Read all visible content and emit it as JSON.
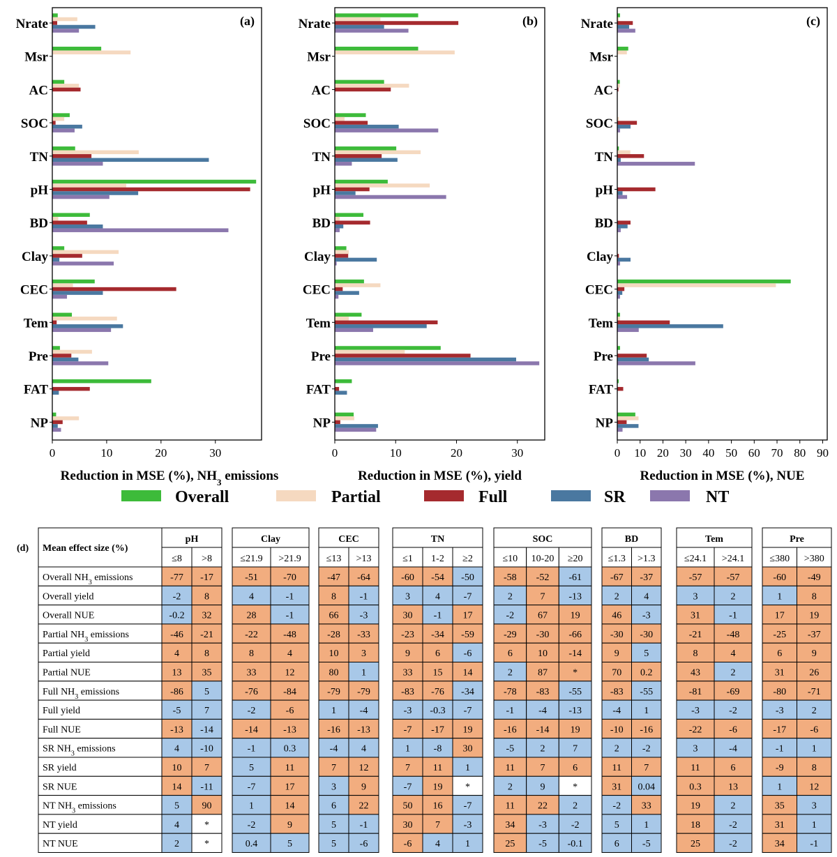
{
  "colors": {
    "Overall": "#3dbb3a",
    "Partial": "#f5d9c0",
    "Full": "#a52a2e",
    "SR": "#4a78a0",
    "NT": "#8b77ad",
    "positive_cell": "#f2ad7f",
    "negative_cell": "#a8c8e8",
    "empty_cell": "#ffffff"
  },
  "legend": [
    "Overall",
    "Partial",
    "Full",
    "SR",
    "NT"
  ],
  "chart_data": [
    {
      "type": "bar",
      "orientation": "horizontal",
      "panel": "(a)",
      "xlabel_main": "Reduction in MSE (%), NH",
      "xlabel_sub": "3",
      "xlabel_tail": " emissions",
      "categories": [
        "Nrate",
        "Msr",
        "AC",
        "SOC",
        "TN",
        "pH",
        "BD",
        "Clay",
        "CEC",
        "Tem",
        "Pre",
        "FAT",
        "NP"
      ],
      "xlim": [
        0,
        38.5
      ],
      "xticks": [
        0,
        10,
        20,
        30
      ],
      "series": [
        {
          "name": "Overall",
          "values": [
            1,
            9,
            2.2,
            3.2,
            4.2,
            37.5,
            6.9,
            2.2,
            7.8,
            3.6,
            1.4,
            18.2,
            0.7
          ]
        },
        {
          "name": "Partial",
          "values": [
            4.6,
            14.4,
            4.9,
            2.2,
            15.9,
            13.6,
            1.1,
            12.2,
            3.8,
            11.9,
            7.3,
            0,
            4.9
          ]
        },
        {
          "name": "Full",
          "values": [
            0.9,
            0,
            5.2,
            0.6,
            7.2,
            36.4,
            6.4,
            5.5,
            22.8,
            0.8,
            3.5,
            6.9,
            1.9
          ]
        },
        {
          "name": "SR",
          "values": [
            7.9,
            0,
            0,
            5.5,
            28.8,
            15.8,
            9.3,
            1.3,
            9.3,
            13,
            4.8,
            1.2,
            1
          ]
        },
        {
          "name": "NT",
          "values": [
            4.9,
            0,
            0,
            4.1,
            9.3,
            10.5,
            32.4,
            11.3,
            2.7,
            10.8,
            10.3,
            0,
            1.6
          ]
        }
      ]
    },
    {
      "type": "bar",
      "orientation": "horizontal",
      "panel": "(b)",
      "xlabel_main": "Reduction in MSE (%), yield",
      "xlabel_sub": "",
      "xlabel_tail": "",
      "categories": [
        "Nrate",
        "Msr",
        "AC",
        "SOC",
        "TN",
        "pH",
        "BD",
        "Clay",
        "CEC",
        "Tem",
        "Pre",
        "FAT",
        "NP"
      ],
      "xlim": [
        0,
        34.5
      ],
      "xticks": [
        0,
        10,
        20,
        30
      ],
      "series": [
        {
          "name": "Overall",
          "values": [
            13.7,
            13.7,
            8.1,
            5.1,
            10.1,
            8.7,
            4.7,
            1.9,
            4.8,
            4.4,
            17.4,
            2.8,
            3.1
          ]
        },
        {
          "name": "Partial",
          "values": [
            7.5,
            19.7,
            12.2,
            1.6,
            14.1,
            15.6,
            0.8,
            2.3,
            7.5,
            2.3,
            11.5,
            0,
            3.2
          ]
        },
        {
          "name": "Full",
          "values": [
            20.3,
            0,
            9.2,
            5.4,
            7.7,
            5.7,
            5.8,
            2.2,
            1.3,
            16.9,
            22.3,
            0.7,
            0.9
          ]
        },
        {
          "name": "SR",
          "values": [
            8.1,
            0,
            0,
            10.5,
            10.3,
            3.4,
            1.4,
            6.9,
            4,
            15.1,
            29.8,
            2,
            7.1
          ]
        },
        {
          "name": "NT",
          "values": [
            12.1,
            0,
            0,
            17,
            2.8,
            18.3,
            0.8,
            0.3,
            0.6,
            6.3,
            33.6,
            0,
            6.8
          ]
        }
      ]
    },
    {
      "type": "bar",
      "orientation": "horizontal",
      "panel": "(c)",
      "xlabel_main": "Reduction in MSE (%), NUE",
      "xlabel_sub": "",
      "xlabel_tail": "",
      "categories": [
        "Nrate",
        "Msr",
        "AC",
        "SOC",
        "TN",
        "pH",
        "BD",
        "Clay",
        "CEC",
        "Tem",
        "Pre",
        "FAT",
        "NP"
      ],
      "xlim": [
        0,
        92
      ],
      "xticks": [
        0,
        10,
        20,
        30,
        40,
        50,
        60,
        70,
        80,
        90
      ],
      "series": [
        {
          "name": "Overall",
          "values": [
            1.2,
            4.8,
            1.1,
            0,
            0.7,
            0,
            0,
            0,
            76,
            1.2,
            1.2,
            0.6,
            7.9
          ]
        },
        {
          "name": "Partial",
          "values": [
            0.6,
            4.2,
            1.1,
            0.7,
            5.7,
            0,
            0,
            0,
            69.5,
            1.2,
            0,
            0,
            9.3
          ]
        },
        {
          "name": "Full",
          "values": [
            6.8,
            0,
            0.5,
            8.6,
            11.7,
            16.7,
            5.8,
            0.7,
            3.1,
            23,
            12.9,
            2.6,
            4.1
          ]
        },
        {
          "name": "SR",
          "values": [
            5.2,
            0,
            0,
            5.8,
            1.5,
            2.3,
            4.5,
            5.8,
            2.2,
            46.4,
            13.8,
            0,
            9.3
          ]
        },
        {
          "name": "NT",
          "values": [
            7.9,
            0,
            0,
            1.2,
            34,
            4.3,
            1.5,
            1.2,
            1.2,
            9.4,
            34.2,
            0,
            2.3
          ]
        }
      ]
    }
  ],
  "table": {
    "panel": "(d)",
    "corner_label": "Mean effect size (%)",
    "groups": [
      {
        "name": "pH",
        "bins": [
          "≤8",
          ">8"
        ]
      },
      {
        "name": "Clay",
        "bins": [
          "≤21.9",
          ">21.9"
        ]
      },
      {
        "name": "CEC",
        "bins": [
          "≤13",
          ">13"
        ]
      },
      {
        "name": "TN",
        "bins": [
          "≤1",
          "1-2",
          "≥2"
        ]
      },
      {
        "name": "SOC",
        "bins": [
          "≤10",
          "10-20",
          "≥20"
        ]
      },
      {
        "name": "BD",
        "bins": [
          "≤1.3",
          ">1.3"
        ]
      },
      {
        "name": "Tem",
        "bins": [
          "≤24.1",
          ">24.1"
        ]
      },
      {
        "name": "Pre",
        "bins": [
          "≤380",
          ">380"
        ]
      }
    ],
    "rows": [
      {
        "pre": "Overall NH",
        "sub": "3",
        "post": " emissions",
        "values": [
          "-77",
          "-17",
          "-51",
          "-70",
          "-47",
          "-64",
          "-60",
          "-54",
          "-50",
          "-58",
          "-52",
          "-61",
          "-67",
          "-37",
          "-57",
          "-57",
          "-60",
          "-49"
        ],
        "sign": [
          "p",
          "p",
          "p",
          "p",
          "p",
          "p",
          "p",
          "p",
          "n",
          "p",
          "p",
          "n",
          "p",
          "p",
          "p",
          "p",
          "p",
          "p"
        ]
      },
      {
        "pre": "Overall yield",
        "sub": "",
        "post": "",
        "values": [
          "-2",
          "8",
          "4",
          "-1",
          "8",
          "-1",
          "3",
          "4",
          "-7",
          "2",
          "7",
          "-13",
          "2",
          "4",
          "3",
          "2",
          "1",
          "8"
        ],
        "sign": [
          "n",
          "p",
          "n",
          "n",
          "p",
          "n",
          "n",
          "n",
          "n",
          "n",
          "p",
          "n",
          "n",
          "n",
          "n",
          "n",
          "n",
          "p"
        ]
      },
      {
        "pre": "Overall NUE",
        "sub": "",
        "post": "",
        "values": [
          "-0.2",
          "32",
          "28",
          "-1",
          "66",
          "-3",
          "30",
          "-1",
          "17",
          "-2",
          "67",
          "19",
          "46",
          "-3",
          "31",
          "-1",
          "17",
          "19"
        ],
        "sign": [
          "n",
          "p",
          "p",
          "n",
          "p",
          "n",
          "p",
          "n",
          "p",
          "n",
          "p",
          "p",
          "p",
          "n",
          "p",
          "n",
          "p",
          "p"
        ]
      },
      {
        "pre": "Partial NH",
        "sub": "3",
        "post": " emissions",
        "values": [
          "-46",
          "-21",
          "-22",
          "-48",
          "-28",
          "-33",
          "-23",
          "-34",
          "-59",
          "-29",
          "-30",
          "-66",
          "-30",
          "-30",
          "-21",
          "-48",
          "-25",
          "-37"
        ],
        "sign": [
          "p",
          "p",
          "p",
          "p",
          "p",
          "p",
          "p",
          "p",
          "p",
          "p",
          "p",
          "p",
          "p",
          "p",
          "p",
          "p",
          "p",
          "p"
        ]
      },
      {
        "pre": "Partial  yield",
        "sub": "",
        "post": "",
        "values": [
          "4",
          "8",
          "8",
          "4",
          "10",
          "3",
          "9",
          "6",
          "-6",
          "6",
          "10",
          "-14",
          "9",
          "5",
          "8",
          "4",
          "6",
          "9"
        ],
        "sign": [
          "p",
          "p",
          "p",
          "p",
          "p",
          "p",
          "p",
          "p",
          "n",
          "p",
          "p",
          "p",
          "p",
          "n",
          "p",
          "p",
          "p",
          "p"
        ]
      },
      {
        "pre": "Partial  NUE",
        "sub": "",
        "post": "",
        "values": [
          "13",
          "35",
          "33",
          "12",
          "80",
          "1",
          "33",
          "15",
          "14",
          "2",
          "87",
          "*",
          "70",
          "0.2",
          "43",
          "2",
          "31",
          "26"
        ],
        "sign": [
          "p",
          "p",
          "p",
          "p",
          "p",
          "n",
          "p",
          "p",
          "p",
          "n",
          "p",
          "p",
          "p",
          "p",
          "p",
          "n",
          "p",
          "p"
        ]
      },
      {
        "pre": "Full NH",
        "sub": "3",
        "post": " emissions",
        "values": [
          "-86",
          "5",
          "-76",
          "-84",
          "-79",
          "-79",
          "-83",
          "-76",
          "-34",
          "-78",
          "-83",
          "-55",
          "-83",
          "-55",
          "-81",
          "-69",
          "-80",
          "-71"
        ],
        "sign": [
          "p",
          "n",
          "p",
          "p",
          "p",
          "p",
          "p",
          "p",
          "n",
          "p",
          "p",
          "n",
          "p",
          "n",
          "p",
          "p",
          "p",
          "p"
        ]
      },
      {
        "pre": "Full yield",
        "sub": "",
        "post": "",
        "values": [
          "-5",
          "7",
          "-2",
          "-6",
          "1",
          "-4",
          "-3",
          "-0.3",
          "-7",
          "-1",
          "-4",
          "-13",
          "-4",
          "1",
          "-3",
          "-2",
          "-3",
          "2"
        ],
        "sign": [
          "n",
          "n",
          "n",
          "p",
          "n",
          "n",
          "n",
          "n",
          "n",
          "n",
          "n",
          "n",
          "n",
          "n",
          "n",
          "n",
          "n",
          "n"
        ]
      },
      {
        "pre": "Full NUE",
        "sub": "",
        "post": "",
        "values": [
          "-13",
          "-14",
          "-14",
          "-13",
          "-16",
          "-13",
          "-7",
          "-17",
          "19",
          "-16",
          "-14",
          "19",
          "-10",
          "-16",
          "-22",
          "-6",
          "-17",
          "-6"
        ],
        "sign": [
          "p",
          "n",
          "p",
          "p",
          "p",
          "p",
          "p",
          "p",
          "p",
          "p",
          "p",
          "p",
          "p",
          "p",
          "p",
          "p",
          "p",
          "p"
        ]
      },
      {
        "pre": "SR NH",
        "sub": "3",
        "post": " emissions",
        "values": [
          "4",
          "-10",
          "-1",
          "0.3",
          "-4",
          "4",
          "1",
          "-8",
          "30",
          "-5",
          "2",
          "7",
          "2",
          "-2",
          "3",
          "-4",
          "-1",
          "1"
        ],
        "sign": [
          "n",
          "n",
          "n",
          "n",
          "n",
          "n",
          "n",
          "n",
          "p",
          "n",
          "n",
          "n",
          "n",
          "n",
          "n",
          "n",
          "n",
          "n"
        ]
      },
      {
        "pre": "SR yield",
        "sub": "",
        "post": "",
        "values": [
          "10",
          "7",
          "5",
          "11",
          "7",
          "12",
          "7",
          "11",
          "1",
          "11",
          "7",
          "6",
          "11",
          "7",
          "11",
          "6",
          "-9",
          "8"
        ],
        "sign": [
          "p",
          "p",
          "n",
          "p",
          "p",
          "p",
          "p",
          "p",
          "n",
          "p",
          "p",
          "p",
          "p",
          "p",
          "p",
          "p",
          "p",
          "p"
        ]
      },
      {
        "pre": "SR NUE",
        "sub": "",
        "post": "",
        "values": [
          "14",
          "-11",
          "-7",
          "17",
          "3",
          "9",
          "-7",
          "19",
          "*",
          "2",
          "9",
          "*",
          "31",
          "0.04",
          "0.3",
          "13",
          "1",
          "12"
        ],
        "sign": [
          "p",
          "n",
          "n",
          "p",
          "n",
          "p",
          "n",
          "p",
          "e",
          "n",
          "n",
          "e",
          "p",
          "n",
          "p",
          "p",
          "n",
          "p"
        ]
      },
      {
        "pre": "NT NH",
        "sub": "3",
        "post": " emissions",
        "values": [
          "5",
          "90",
          "1",
          "14",
          "6",
          "22",
          "50",
          "16",
          "-7",
          "11",
          "22",
          "2",
          "-2",
          "33",
          "19",
          "2",
          "35",
          "3"
        ],
        "sign": [
          "n",
          "p",
          "n",
          "p",
          "n",
          "p",
          "p",
          "p",
          "n",
          "p",
          "p",
          "n",
          "n",
          "p",
          "p",
          "n",
          "p",
          "n"
        ]
      },
      {
        "pre": "NT yield",
        "sub": "",
        "post": "",
        "values": [
          "4",
          "*",
          "-2",
          "9",
          "5",
          "-1",
          "30",
          "7",
          "-3",
          "34",
          "-3",
          "-2",
          "5",
          "1",
          "18",
          "-2",
          "31",
          "1"
        ],
        "sign": [
          "n",
          "e",
          "n",
          "p",
          "n",
          "n",
          "p",
          "p",
          "n",
          "p",
          "n",
          "n",
          "n",
          "n",
          "p",
          "n",
          "p",
          "n"
        ]
      },
      {
        "pre": "NT NUE",
        "sub": "",
        "post": "",
        "values": [
          "2",
          "*",
          "0.4",
          "5",
          "5",
          "-6",
          "-6",
          "4",
          "1",
          "25",
          "-5",
          "-0.1",
          "6",
          "-5",
          "25",
          "-2",
          "34",
          "-1"
        ],
        "sign": [
          "n",
          "e",
          "n",
          "n",
          "n",
          "n",
          "p",
          "n",
          "n",
          "p",
          "n",
          "n",
          "n",
          "n",
          "p",
          "n",
          "p",
          "n"
        ]
      }
    ]
  }
}
